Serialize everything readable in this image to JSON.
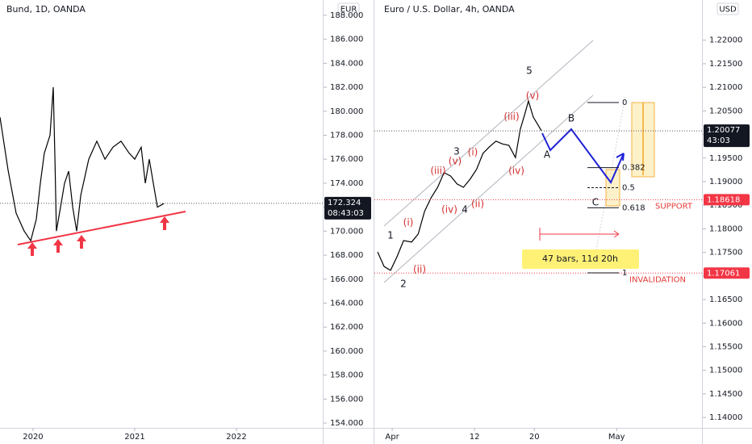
{
  "chart_data": [
    {
      "type": "line",
      "title": "Bund, 1D, OANDA",
      "currency": "EUR",
      "color": "#000000",
      "xlim": [
        2019.675,
        2022.849
      ],
      "xticks": [
        2020,
        2021,
        2022
      ],
      "ylim": [
        153.6,
        188.6
      ],
      "yticks": [
        {
          "value": 154,
          "label": "154.000"
        },
        {
          "value": 156,
          "label": "156.000"
        },
        {
          "value": 158,
          "label": "158.000"
        },
        {
          "value": 160,
          "label": "160.000"
        },
        {
          "value": 162,
          "label": "162.000"
        },
        {
          "value": 164,
          "label": "164.000"
        },
        {
          "value": 166,
          "label": "166.000"
        },
        {
          "value": 168,
          "label": "168.000"
        },
        {
          "value": 170,
          "label": "170.000"
        },
        {
          "value": 172,
          "label": "172.000"
        },
        {
          "value": 174,
          "label": "174.000"
        },
        {
          "value": 176,
          "label": "176.000"
        },
        {
          "value": 178,
          "label": "178.000"
        },
        {
          "value": 180,
          "label": "180.000"
        },
        {
          "value": 182,
          "label": "182.000"
        },
        {
          "value": 184,
          "label": "184.000"
        },
        {
          "value": 186,
          "label": "186.000"
        },
        {
          "value": 188,
          "label": "188.000"
        }
      ],
      "grid": false,
      "x": [
        2019.675,
        2019.754,
        2019.834,
        2019.913,
        2019.977,
        2020.032,
        2020.072,
        2020.111,
        2020.167,
        2020.199,
        2020.215,
        2020.23,
        2020.27,
        2020.31,
        2020.35,
        2020.39,
        2020.429,
        2020.469,
        2020.548,
        2020.627,
        2020.707,
        2020.786,
        2020.865,
        2020.945,
        2021.0,
        2021.064,
        2021.104,
        2021.143,
        2021.183,
        2021.223,
        2021.286
      ],
      "values": [
        179.5,
        175.1,
        171.5,
        170.0,
        169.2,
        171.0,
        174.0,
        176.5,
        178.0,
        182.0,
        176.0,
        170.0,
        172.0,
        174.0,
        175.0,
        172.0,
        170.0,
        173.0,
        176.0,
        177.5,
        176.0,
        177.0,
        177.5,
        176.5,
        176.0,
        177.0,
        174.0,
        176.0,
        174.0,
        172.0,
        172.3
      ],
      "last_price": 172.324,
      "countdown": "08:43:03"
    },
    {
      "type": "line",
      "title": "Euro / U.S. Dollar, 4h, OANDA",
      "currency": "USD",
      "color": "#000000",
      "xlim": [
        -1.38,
        42.4
      ],
      "xticks": [
        {
          "value": 1,
          "label": "Apr"
        },
        12,
        20,
        {
          "value": 31,
          "label": "May"
        }
      ],
      "ylim": [
        1.1378,
        1.2268
      ],
      "yticks": [
        {
          "value": 1.14,
          "label": "1.14000"
        },
        {
          "value": 1.145,
          "label": "1.14500"
        },
        {
          "value": 1.15,
          "label": "1.15000"
        },
        {
          "value": 1.155,
          "label": "1.15500"
        },
        {
          "value": 1.16,
          "label": "1.16000"
        },
        {
          "value": 1.165,
          "label": "1.16500"
        },
        {
          "value": 1.17,
          "label": "1.17000"
        },
        {
          "value": 1.175,
          "label": "1.17500"
        },
        {
          "value": 1.18,
          "label": "1.18000"
        },
        {
          "value": 1.185,
          "label": "1.18500"
        },
        {
          "value": 1.19,
          "label": "1.19000"
        },
        {
          "value": 1.195,
          "label": "1.19500"
        },
        {
          "value": 1.2,
          "label": "1.20000"
        },
        {
          "value": 1.205,
          "label": "1.20500"
        },
        {
          "value": 1.21,
          "label": "1.21000"
        },
        {
          "value": 1.215,
          "label": "1.21500"
        },
        {
          "value": 1.22,
          "label": "1.22000"
        }
      ],
      "grid": false,
      "x": [
        -0.95,
        -0.08,
        0.78,
        1.65,
        2.52,
        3.6,
        4.47,
        5.33,
        6.2,
        7.07,
        7.93,
        8.8,
        9.67,
        10.53,
        11.4,
        12.27,
        13.13,
        14.0,
        14.87,
        15.73,
        16.6,
        17.47,
        18.12,
        18.77,
        19.2,
        19.85,
        20.5,
        20.93
      ],
      "values": [
        1.1751,
        1.172,
        1.1712,
        1.1741,
        1.1775,
        1.1772,
        1.1789,
        1.1837,
        1.1866,
        1.1888,
        1.1919,
        1.1912,
        1.1895,
        1.1888,
        1.1905,
        1.1926,
        1.196,
        1.1974,
        1.1986,
        1.198,
        1.1977,
        1.1951,
        1.2011,
        1.2046,
        1.2071,
        1.2037,
        1.202,
        1.2008
      ],
      "last_price": 1.20077,
      "countdown": "43:03",
      "support": 1.18618,
      "support_label": "SUPPORT",
      "invalidation": 1.17061,
      "invalidation_label": "INVALIDATION",
      "fib_levels": [
        0,
        0.382,
        0.5,
        0.618,
        1
      ],
      "measure_label": "47 bars, 11d 20h",
      "wave_labels": [
        "5",
        "(v)",
        "(iii)",
        "3",
        "(i)",
        "(iii)",
        "(v)",
        "1",
        "(i)",
        "(ii)",
        "2",
        "(iv)",
        "4",
        "(ii)",
        "(iv)",
        "A",
        "B",
        "C"
      ]
    }
  ]
}
